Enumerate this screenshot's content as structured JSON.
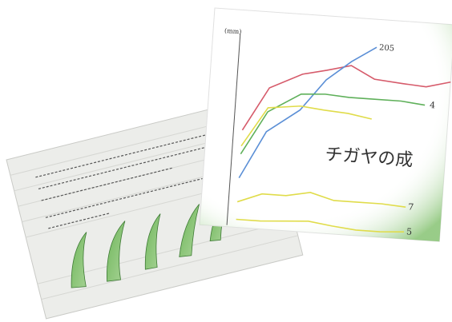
{
  "photo": {
    "chart_unit": "(mm)",
    "chart_caption": "チガヤの成",
    "line_end_labels": [
      "205",
      "4",
      "7",
      "5"
    ]
  }
}
